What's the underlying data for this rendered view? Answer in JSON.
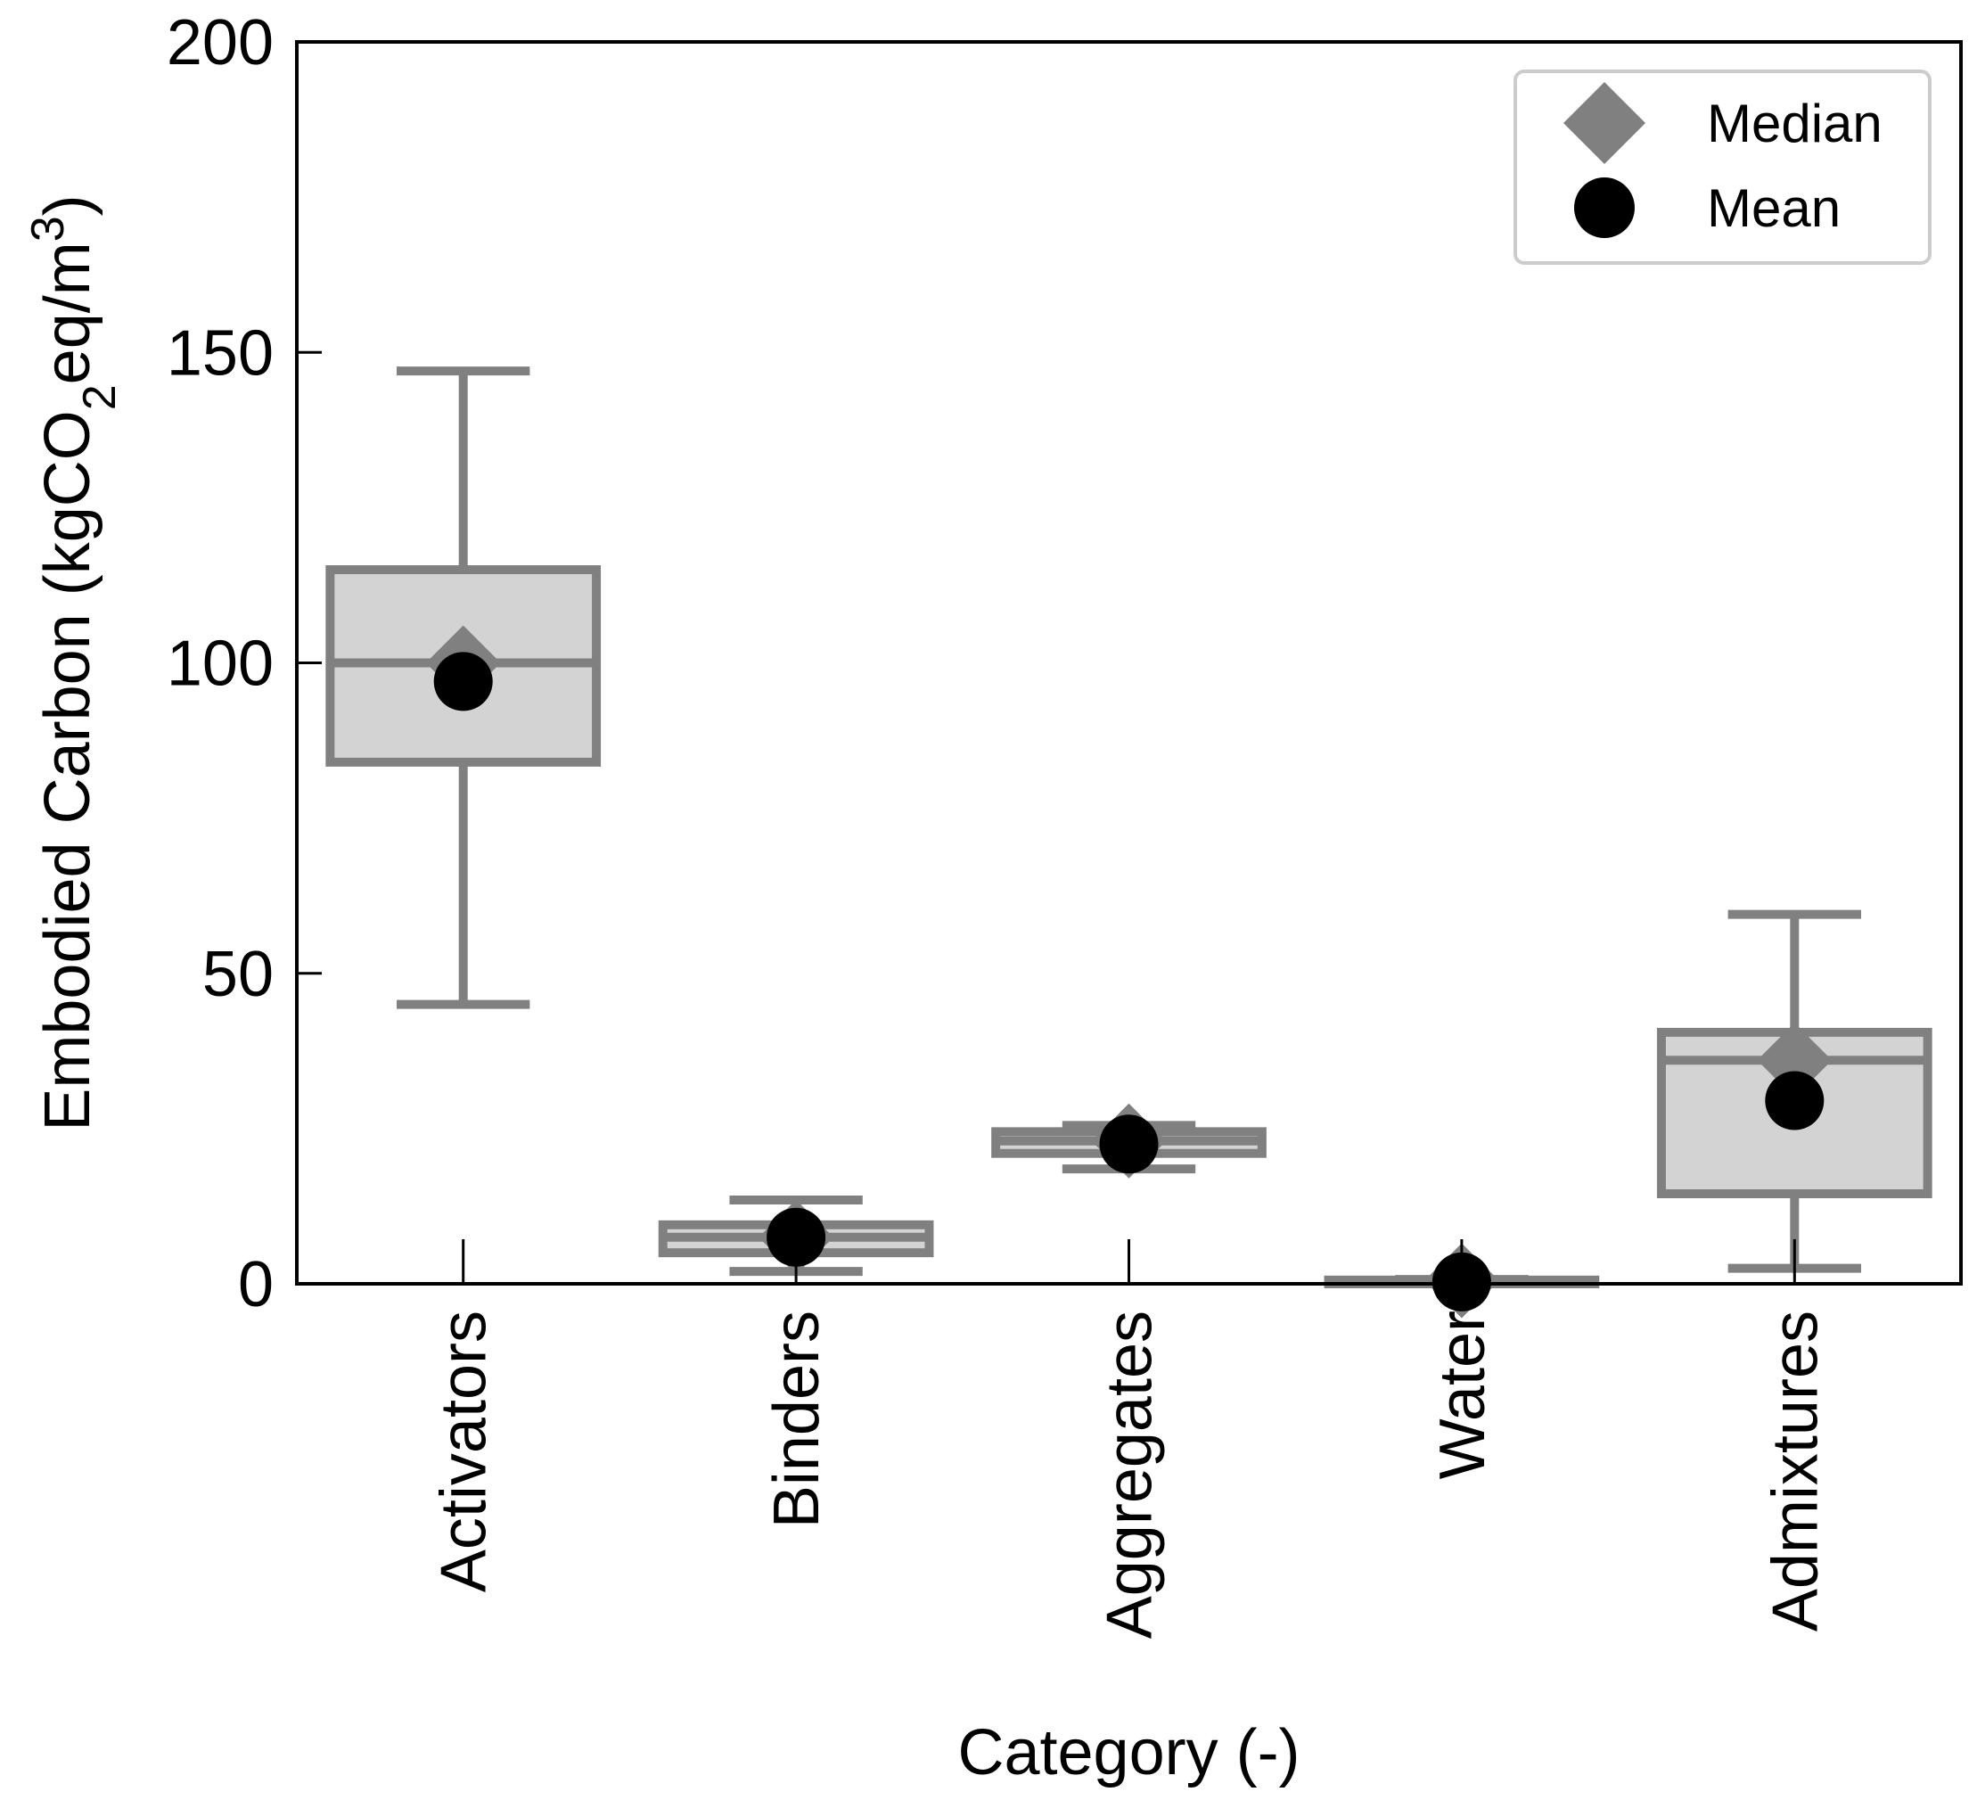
{
  "chart_data": {
    "type": "box",
    "xlabel": "Category (-)",
    "ylabel_parts": {
      "prefix": "Embodied Carbon (kgCO",
      "sub": "2",
      "middle": "eq/m",
      "sup": "3",
      "suffix": ")"
    },
    "ylim": [
      0,
      200
    ],
    "yticks": [
      0,
      50,
      100,
      150,
      200
    ],
    "legend": {
      "placement": "top-right",
      "entries": [
        {
          "label": "Median",
          "marker": "diamond",
          "color": "#808080"
        },
        {
          "label": "Mean",
          "marker": "circle",
          "color": "#000000"
        }
      ]
    },
    "colors": {
      "box_fill": "#d3d3d3",
      "box_edge": "#808080",
      "mean": "#000000",
      "median_marker": "#808080"
    },
    "categories": [
      "Activators",
      "Binders",
      "Aggregates",
      "Water",
      "Admixtures"
    ],
    "boxes": [
      {
        "name": "Activators",
        "whislo": 45,
        "q1": 84,
        "med": 100,
        "q3": 115,
        "whishi": 147,
        "mean": 97
      },
      {
        "name": "Binders",
        "whislo": 2,
        "q1": 5,
        "med": 7.5,
        "q3": 9.5,
        "whishi": 13.5,
        "mean": 7.5
      },
      {
        "name": "Aggregates",
        "whislo": 18.5,
        "q1": 21,
        "med": 23,
        "q3": 24.5,
        "whishi": 25.5,
        "mean": 22.5
      },
      {
        "name": "Water",
        "whislo": 0,
        "q1": 0,
        "med": 0.5,
        "q3": 0.6,
        "whishi": 0.7,
        "mean": 0.3
      },
      {
        "name": "Admixtures",
        "whislo": 2.5,
        "q1": 14.5,
        "med": 36,
        "q3": 40.5,
        "whishi": 59.5,
        "mean": 29.5
      }
    ]
  }
}
